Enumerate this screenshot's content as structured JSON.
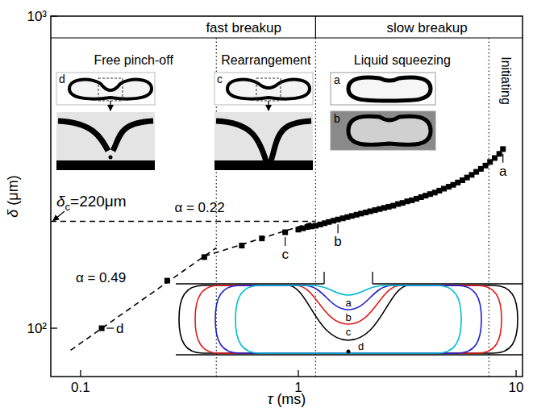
{
  "chart_data": {
    "type": "scatter",
    "xlabel": "τ (ms)",
    "ylabel": "δ (μm)",
    "log": true,
    "grid": false,
    "xlim": [
      0.073,
      10.7
    ],
    "xticks": [
      0.1,
      1,
      10
    ],
    "ylim": [
      70,
      1000
    ],
    "yticks": [
      {
        "value": 100,
        "label": "10²"
      },
      {
        "value": 1000,
        "label": "10³"
      }
    ],
    "series": [
      {
        "type": "line",
        "line_style": "dashed",
        "color": "#000000",
        "x": [
          0.09,
          0.42
        ],
        "values": [
          85,
          181
        ]
      },
      {
        "type": "line",
        "line_style": "dashed",
        "color": "#000000",
        "x": [
          0.37,
          1.2
        ],
        "values": [
          170,
          220
        ]
      },
      {
        "type": "line",
        "line_style": "dashed",
        "color": "#000000",
        "x": [
          0.073,
          1.2
        ],
        "values": [
          220,
          220
        ]
      },
      {
        "type": "scatter",
        "marker": "square",
        "color": "#000000",
        "x": [
          0.125,
          0.25,
          0.37,
          0.55,
          0.68,
          0.87,
          1.0,
          1.05,
          1.1,
          1.15,
          1.2,
          1.26,
          1.32,
          1.38,
          1.45,
          1.52,
          1.6,
          1.68,
          1.76,
          1.85,
          1.94,
          2.04,
          2.14,
          2.25,
          2.36,
          2.48,
          2.6,
          2.73,
          2.87,
          3.01,
          3.16,
          3.32,
          3.49,
          3.66,
          3.84,
          4.03,
          4.23,
          4.44,
          4.66,
          4.9,
          5.14,
          5.4,
          5.67,
          5.95,
          6.25,
          6.56,
          6.89,
          7.23,
          7.59,
          7.97,
          8.37,
          8.7
        ],
        "values": [
          100,
          142,
          169,
          184,
          194,
          203,
          207,
          209,
          211,
          212,
          213,
          215,
          217,
          219,
          221,
          223,
          225,
          227,
          229,
          231,
          233,
          235,
          237,
          239,
          241,
          243,
          245,
          247,
          250,
          252,
          255,
          257,
          260,
          263,
          266,
          269,
          272,
          276,
          280,
          284,
          288,
          293,
          298,
          304,
          310,
          317,
          324,
          332,
          341,
          351,
          362,
          375
        ]
      }
    ],
    "regions": {
      "boundaries": [
        0.42,
        1.2,
        7.5
      ],
      "header": [
        "fast breakup",
        "slow breakup"
      ],
      "stages": [
        "Free pinch-off",
        "Rearrangement",
        "Liquid squeezing",
        "Initiating"
      ]
    },
    "annotations": [
      {
        "text": "α = 0.49",
        "x": 0.095,
        "y": 140
      },
      {
        "text": "α = 0.22",
        "x": 0.27,
        "y": 235
      }
    ],
    "point_labels": [
      {
        "text": "a",
        "x": 8.7,
        "y": 375
      },
      {
        "text": "b",
        "x": 1.52,
        "y": 223
      },
      {
        "text": "c",
        "x": 0.87,
        "y": 203
      },
      {
        "text": "d",
        "x": 0.125,
        "y": 100
      }
    ],
    "critical": {
      "main": "δ",
      "sub": "c",
      "rest": "=220μm",
      "value": 220
    },
    "insets": {
      "photos": [
        "d",
        "c",
        "a",
        "b"
      ],
      "contours": [
        {
          "label": "a",
          "color": "#00bcd4"
        },
        {
          "label": "b",
          "color": "#1f1fd0"
        },
        {
          "label": "c",
          "color": "#e41a1a"
        },
        {
          "label": "d",
          "color": "#000000"
        }
      ]
    }
  }
}
